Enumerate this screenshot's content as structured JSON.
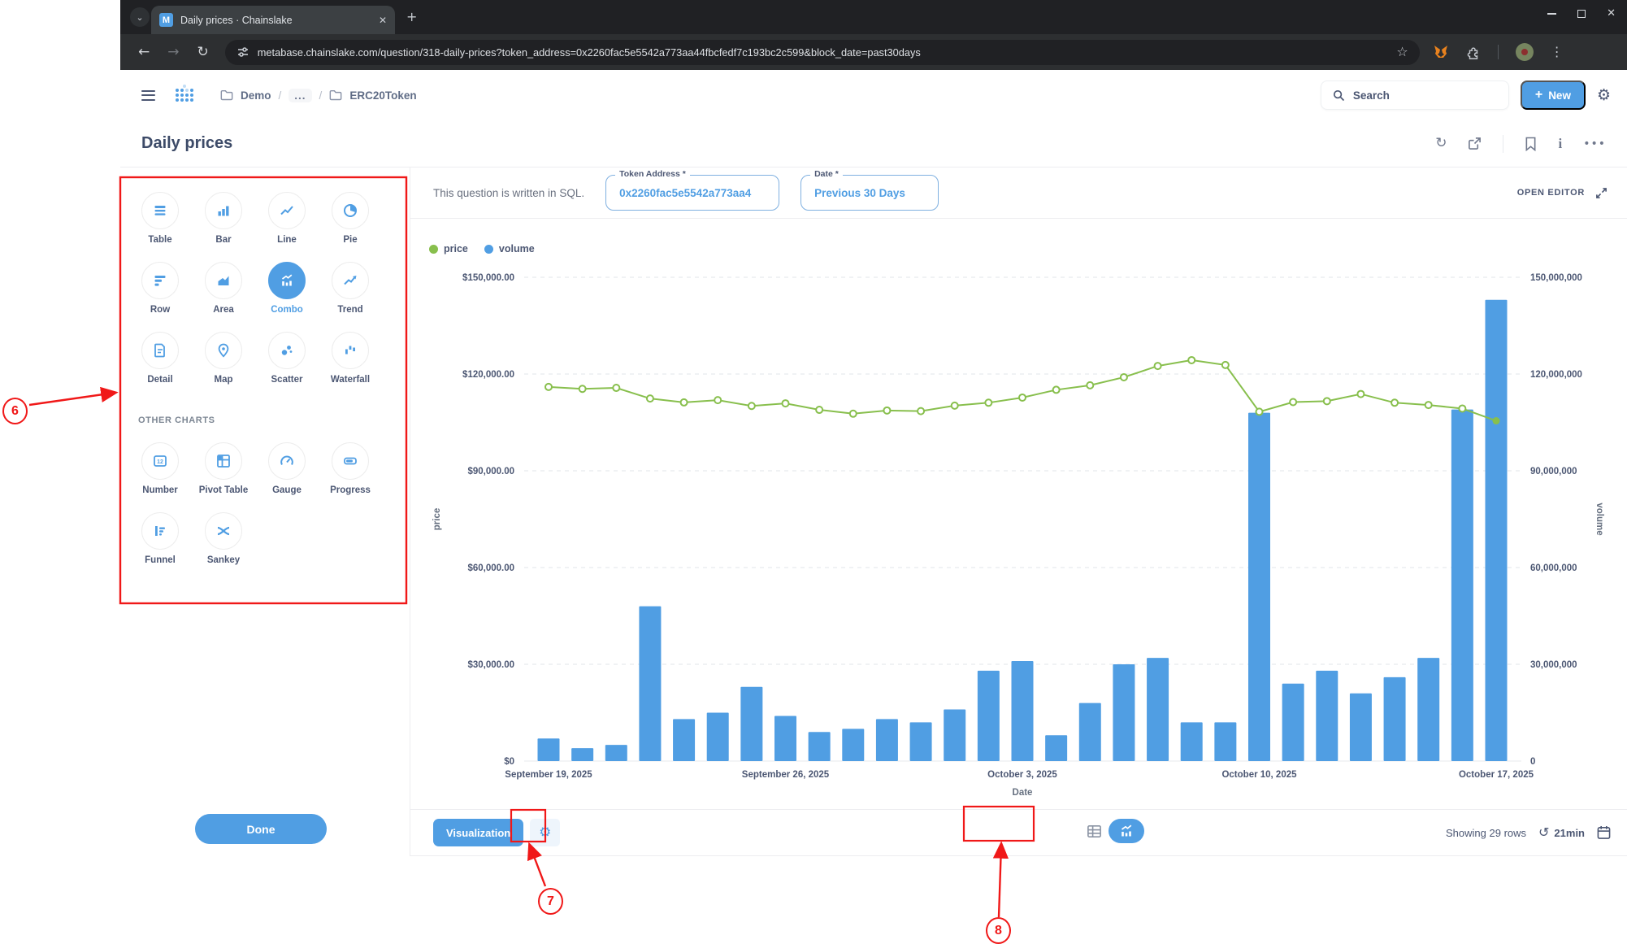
{
  "browser": {
    "tab_title": "Daily prices · Chainslake",
    "url": "metabase.chainslake.com/question/318-daily-prices?token_address=0x2260fac5e5542a773aa44fbcfedf7c193bc2c599&block_date=past30days",
    "favicon_letter": "M"
  },
  "nav": {
    "breadcrumb": {
      "root": "Demo",
      "slash1": "/",
      "ellipsis": "...",
      "slash2": "/",
      "current": "ERC20Token"
    },
    "search_label": "Search",
    "new_plus": "+",
    "new_label": "New"
  },
  "page_title": "Daily prices",
  "query_bar": {
    "sql_note": "This question is written in SQL.",
    "filters": [
      {
        "label": "Token Address *",
        "value": "0x2260fac5e5542a773aa4"
      },
      {
        "label": "Date *",
        "value": "Previous 30 Days"
      }
    ],
    "open_editor": "OPEN EDITOR"
  },
  "picker": {
    "main_items": [
      {
        "id": "table",
        "label": "Table",
        "selected": false
      },
      {
        "id": "bar",
        "label": "Bar",
        "selected": false
      },
      {
        "id": "line",
        "label": "Line",
        "selected": false
      },
      {
        "id": "pie",
        "label": "Pie",
        "selected": false
      },
      {
        "id": "row",
        "label": "Row",
        "selected": false
      },
      {
        "id": "area",
        "label": "Area",
        "selected": false
      },
      {
        "id": "combo",
        "label": "Combo",
        "selected": true
      },
      {
        "id": "trend",
        "label": "Trend",
        "selected": false
      },
      {
        "id": "detail",
        "label": "Detail",
        "selected": false
      },
      {
        "id": "map",
        "label": "Map",
        "selected": false
      },
      {
        "id": "scatter",
        "label": "Scatter",
        "selected": false
      },
      {
        "id": "waterfall",
        "label": "Waterfall",
        "selected": false
      }
    ],
    "other_header": "OTHER CHARTS",
    "other_items": [
      {
        "id": "number",
        "label": "Number",
        "selected": false
      },
      {
        "id": "pivot",
        "label": "Pivot Table",
        "selected": false
      },
      {
        "id": "gauge",
        "label": "Gauge",
        "selected": false
      },
      {
        "id": "progress",
        "label": "Progress",
        "selected": false
      },
      {
        "id": "funnel",
        "label": "Funnel",
        "selected": false
      },
      {
        "id": "sankey",
        "label": "Sankey",
        "selected": false
      }
    ],
    "done_label": "Done"
  },
  "footer": {
    "visualization_label": "Visualization",
    "rows_text": "Showing 29 rows",
    "cache_text": "21min"
  },
  "annotations": {
    "a6": "6",
    "a7": "7",
    "a8": "8"
  },
  "colors": {
    "brand_blue": "#509EE3",
    "line_green": "#88BF4D",
    "annotation_red": "#f01818"
  },
  "chart_data": {
    "type": "combo",
    "xlabel": "Date",
    "ylabel_left": "price",
    "ylabel_right": "volume",
    "dates": [
      "2025-09-19",
      "2025-09-20",
      "2025-09-21",
      "2025-09-22",
      "2025-09-23",
      "2025-09-24",
      "2025-09-25",
      "2025-09-26",
      "2025-09-27",
      "2025-09-28",
      "2025-09-29",
      "2025-09-30",
      "2025-10-01",
      "2025-10-02",
      "2025-10-03",
      "2025-10-04",
      "2025-10-05",
      "2025-10-06",
      "2025-10-07",
      "2025-10-08",
      "2025-10-09",
      "2025-10-10",
      "2025-10-11",
      "2025-10-12",
      "2025-10-13",
      "2025-10-14",
      "2025-10-15",
      "2025-10-16",
      "2025-10-17"
    ],
    "x_ticks": {
      "indices": [
        0,
        7,
        14,
        21,
        28
      ],
      "labels": [
        "September 19, 2025",
        "September 26, 2025",
        "October 3, 2025",
        "October 10, 2025",
        "October 17, 2025"
      ]
    },
    "series": [
      {
        "name": "price",
        "type": "line",
        "axis": "left",
        "color": "#88BF4D",
        "values": [
          116000,
          115400,
          115700,
          112400,
          111200,
          111900,
          110100,
          110900,
          108900,
          107700,
          108700,
          108500,
          110200,
          111100,
          112700,
          115100,
          116500,
          119000,
          122500,
          124300,
          122800,
          108300,
          111300,
          111600,
          113800,
          111100,
          110400,
          109300,
          105500
        ]
      },
      {
        "name": "volume",
        "type": "bar",
        "axis": "right",
        "color": "#509EE3",
        "values": [
          7000000,
          4000000,
          5000000,
          48000000,
          13000000,
          15000000,
          23000000,
          14000000,
          9000000,
          10000000,
          13000000,
          12000000,
          16000000,
          28000000,
          31000000,
          8000000,
          18000000,
          30000000,
          32000000,
          12000000,
          12000000,
          108000000,
          24000000,
          28000000,
          21000000,
          26000000,
          32000000,
          109000000,
          143000000
        ]
      }
    ],
    "y_left": {
      "min": 0,
      "max": 150000,
      "tick_values": [
        0,
        30000,
        60000,
        90000,
        120000,
        150000
      ],
      "tick_labels": [
        "$0",
        "$30,000.00",
        "$60,000.00",
        "$90,000.00",
        "$120,000.00",
        "$150,000.00"
      ]
    },
    "y_right": {
      "min": 0,
      "max": 150000000,
      "tick_values": [
        0,
        30000000,
        60000000,
        90000000,
        120000000,
        150000000
      ],
      "tick_labels": [
        "0",
        "30,000,000",
        "60,000,000",
        "90,000,000",
        "120,000,000",
        "150,000,000"
      ]
    },
    "grid": "dashed-horizontal",
    "legend_position": "top-left"
  }
}
